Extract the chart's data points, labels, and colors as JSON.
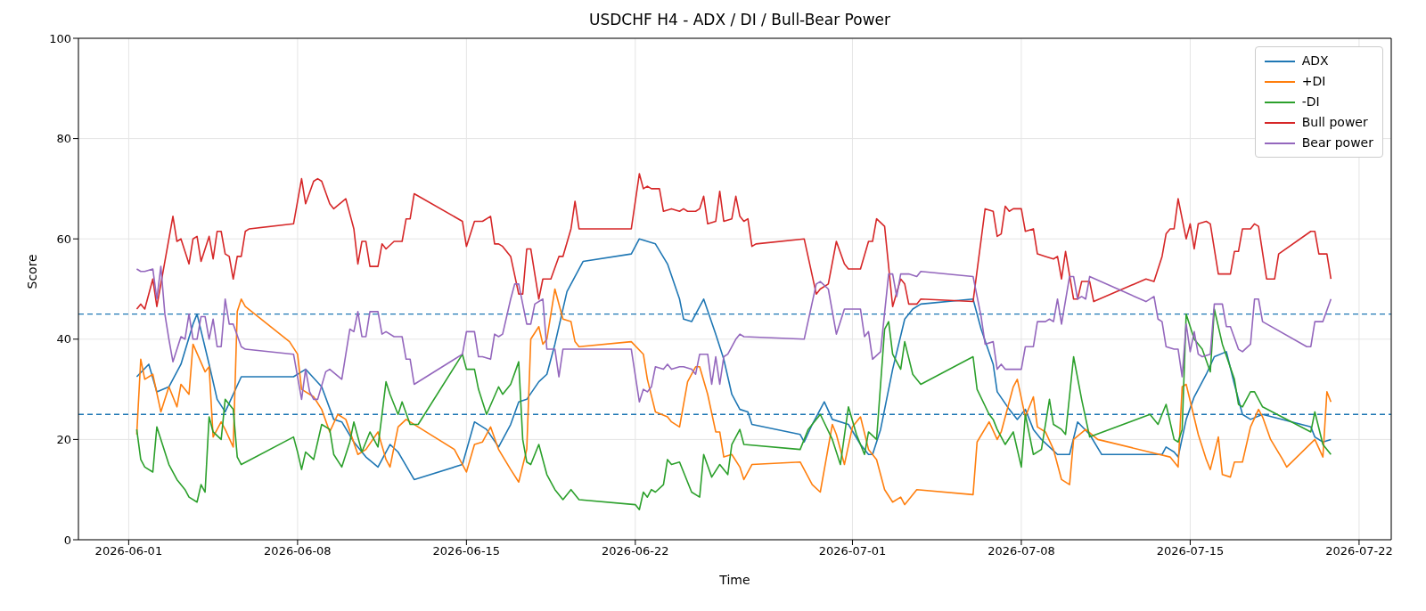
{
  "chart_data": {
    "type": "line",
    "title": "USDCHF H4 - ADX / DI / Bull-Bear Power",
    "xlabel": "Time",
    "ylabel": "Score",
    "xlim": [
      "2026-05-29T22:00",
      "2026-07-23T08:00"
    ],
    "xticks": [
      "2026-06-01",
      "2026-06-08",
      "2026-06-15",
      "2026-06-22",
      "2026-07-01",
      "2026-07-08",
      "2026-07-15",
      "2026-07-22"
    ],
    "ylim": [
      0,
      100
    ],
    "yticks": [
      0,
      20,
      40,
      60,
      80,
      100
    ],
    "grid": true,
    "legend": "top right",
    "marker": "none",
    "line_style": "solid",
    "ref_lines": [
      {
        "axis": "y",
        "value": 45,
        "color": "#1f77b4",
        "line_style": "dashed"
      },
      {
        "axis": "y",
        "value": 25,
        "color": "#1f77b4",
        "line_style": "dashed"
      }
    ],
    "series": [
      {
        "name": "ADX",
        "color": "#1f77b4",
        "x": [
          "2026-06-01T08:00",
          "2026-06-01T20:00",
          "2026-06-02T04:00",
          "2026-06-02T16:00",
          "2026-06-03T04:00",
          "2026-06-03T16:00",
          "2026-06-03T20:00",
          "2026-06-04T08:00",
          "2026-06-04T16:00",
          "2026-06-05T00:00",
          "2026-06-05T16:00",
          "2026-06-07T20:00",
          "2026-06-08T08:00",
          "2026-06-09T00:00",
          "2026-06-09T12:00",
          "2026-06-09T20:00",
          "2026-06-10T08:00",
          "2026-06-10T20:00",
          "2026-06-11T08:00",
          "2026-06-11T20:00",
          "2026-06-12T04:00",
          "2026-06-12T20:00",
          "2026-06-14T20:00",
          "2026-06-15T08:00",
          "2026-06-15T20:00",
          "2026-06-16T08:00",
          "2026-06-16T20:00",
          "2026-06-17T04:00",
          "2026-06-17T12:00",
          "2026-06-18T00:00",
          "2026-06-18T08:00",
          "2026-06-18T16:00",
          "2026-06-19T04:00",
          "2026-06-19T20:00",
          "2026-06-21T20:00",
          "2026-06-22T04:00",
          "2026-06-22T20:00",
          "2026-06-23T08:00",
          "2026-06-23T20:00",
          "2026-06-24T00:00",
          "2026-06-24T08:00",
          "2026-06-24T20:00",
          "2026-06-25T08:00",
          "2026-06-25T16:00",
          "2026-06-26T00:00",
          "2026-06-26T08:00",
          "2026-06-26T16:00",
          "2026-06-26T20:00",
          "2026-06-28T20:00",
          "2026-06-29T00:00",
          "2026-06-29T08:00",
          "2026-06-29T20:00",
          "2026-06-30T04:00",
          "2026-06-30T20:00",
          "2026-07-01T08:00",
          "2026-07-01T16:00",
          "2026-07-01T20:00",
          "2026-07-02T04:00",
          "2026-07-02T16:00",
          "2026-07-03T04:00",
          "2026-07-03T12:00",
          "2026-07-03T20:00",
          "2026-07-06T00:00",
          "2026-07-06T08:00",
          "2026-07-06T20:00",
          "2026-07-07T00:00",
          "2026-07-07T12:00",
          "2026-07-07T20:00",
          "2026-07-08T04:00",
          "2026-07-08T12:00",
          "2026-07-08T20:00",
          "2026-07-09T12:00",
          "2026-07-10T00:00",
          "2026-07-10T08:00",
          "2026-07-10T20:00",
          "2026-07-11T08:00",
          "2026-07-13T20:00",
          "2026-07-14T00:00",
          "2026-07-14T08:00",
          "2026-07-14T12:00",
          "2026-07-14T20:00",
          "2026-07-15T04:00",
          "2026-07-15T16:00",
          "2026-07-16T00:00",
          "2026-07-16T12:00",
          "2026-07-16T20:00",
          "2026-07-17T04:00",
          "2026-07-17T12:00",
          "2026-07-18T00:00",
          "2026-07-20T00:00",
          "2026-07-20T04:00",
          "2026-07-20T12:00",
          "2026-07-20T20:00"
        ],
        "values": [
          32.5,
          35,
          29.5,
          30.5,
          35,
          43,
          45,
          35,
          28,
          25.5,
          32.5,
          32.5,
          34,
          30.5,
          24,
          23.5,
          19.5,
          16.5,
          14.5,
          19,
          17.5,
          12,
          15,
          23.5,
          22,
          18.5,
          23,
          27.5,
          28,
          31.5,
          33,
          39,
          49.5,
          55.5,
          57,
          60,
          59,
          55,
          48,
          44,
          43.5,
          48,
          41,
          36,
          29,
          26,
          25.5,
          23,
          21,
          19.5,
          23,
          27.5,
          24,
          23,
          19,
          17,
          17,
          22,
          34,
          44,
          46,
          47,
          48,
          42,
          35,
          29.5,
          26,
          24,
          26,
          22,
          20,
          17,
          17,
          23.5,
          21,
          17,
          17,
          18.5,
          17.5,
          16.5,
          24,
          28.5,
          33,
          36.5,
          37.5,
          31,
          25,
          24,
          25,
          22.5,
          20.5,
          19.5,
          20
        ]
      },
      {
        "name": "+DI",
        "color": "#ff7f0e",
        "x": [
          "2026-06-01T08:00",
          "2026-06-01T12:00",
          "2026-06-01T16:00",
          "2026-06-02T00:00",
          "2026-06-02T08:00",
          "2026-06-02T16:00",
          "2026-06-03T00:00",
          "2026-06-03T04:00",
          "2026-06-03T12:00",
          "2026-06-03T16:00",
          "2026-06-04T04:00",
          "2026-06-04T08:00",
          "2026-06-04T12:00",
          "2026-06-04T20:00",
          "2026-06-05T00:00",
          "2026-06-05T08:00",
          "2026-06-05T12:00",
          "2026-06-05T16:00",
          "2026-06-05T20:00",
          "2026-06-07T16:00",
          "2026-06-08T00:00",
          "2026-06-08T04:00",
          "2026-06-08T16:00",
          "2026-06-09T00:00",
          "2026-06-09T08:00",
          "2026-06-09T16:00",
          "2026-06-10T00:00",
          "2026-06-10T12:00",
          "2026-06-10T20:00",
          "2026-06-11T08:00",
          "2026-06-11T16:00",
          "2026-06-11T20:00",
          "2026-06-12T04:00",
          "2026-06-12T12:00",
          "2026-06-13T00:00",
          "2026-06-14T12:00",
          "2026-06-15T00:00",
          "2026-06-15T08:00",
          "2026-06-15T16:00",
          "2026-06-16T00:00",
          "2026-06-16T08:00",
          "2026-06-16T20:00",
          "2026-06-17T04:00",
          "2026-06-17T12:00",
          "2026-06-17T16:00",
          "2026-06-18T00:00",
          "2026-06-18T04:00",
          "2026-06-18T08:00",
          "2026-06-18T16:00",
          "2026-06-19T00:00",
          "2026-06-19T08:00",
          "2026-06-19T12:00",
          "2026-06-19T16:00",
          "2026-06-21T20:00",
          "2026-06-22T08:00",
          "2026-06-22T12:00",
          "2026-06-22T20:00",
          "2026-06-23T08:00",
          "2026-06-23T12:00",
          "2026-06-23T20:00",
          "2026-06-24T04:00",
          "2026-06-24T12:00",
          "2026-06-24T16:00",
          "2026-06-25T00:00",
          "2026-06-25T08:00",
          "2026-06-25T12:00",
          "2026-06-25T16:00",
          "2026-06-26T00:00",
          "2026-06-26T08:00",
          "2026-06-26T12:00",
          "2026-06-26T20:00",
          "2026-06-28T20:00",
          "2026-06-29T08:00",
          "2026-06-29T16:00",
          "2026-06-30T04:00",
          "2026-06-30T08:00",
          "2026-06-30T16:00",
          "2026-07-01T00:00",
          "2026-07-01T08:00",
          "2026-07-01T16:00",
          "2026-07-02T00:00",
          "2026-07-02T08:00",
          "2026-07-02T16:00",
          "2026-07-03T00:00",
          "2026-07-03T04:00",
          "2026-07-03T16:00",
          "2026-07-06T00:00",
          "2026-07-06T04:00",
          "2026-07-06T16:00",
          "2026-07-07T00:00",
          "2026-07-07T04:00",
          "2026-07-07T16:00",
          "2026-07-07T20:00",
          "2026-07-08T04:00",
          "2026-07-08T12:00",
          "2026-07-08T16:00",
          "2026-07-09T00:00",
          "2026-07-09T08:00",
          "2026-07-09T16:00",
          "2026-07-10T00:00",
          "2026-07-10T04:00",
          "2026-07-10T16:00",
          "2026-07-11T04:00",
          "2026-07-14T04:00",
          "2026-07-14T12:00",
          "2026-07-14T16:00",
          "2026-07-14T20:00",
          "2026-07-15T08:00",
          "2026-07-15T16:00",
          "2026-07-15T20:00",
          "2026-07-16T04:00",
          "2026-07-16T08:00",
          "2026-07-16T16:00",
          "2026-07-16T20:00",
          "2026-07-17T04:00",
          "2026-07-17T12:00",
          "2026-07-17T20:00",
          "2026-07-18T00:00",
          "2026-07-18T08:00",
          "2026-07-18T20:00",
          "2026-07-19T00:00",
          "2026-07-20T04:00",
          "2026-07-20T12:00",
          "2026-07-20T16:00",
          "2026-07-20T20:00"
        ],
        "values": [
          21,
          36,
          32,
          33,
          25.5,
          30.5,
          26.5,
          31,
          29,
          39,
          33.5,
          34.5,
          20.5,
          23.5,
          22,
          18.5,
          45.5,
          48,
          46.5,
          39.5,
          37,
          30,
          28.5,
          26,
          21.5,
          25,
          24,
          17,
          18,
          21.5,
          16,
          14.5,
          22.5,
          24,
          22.5,
          18,
          13.5,
          19,
          19.5,
          22.5,
          18,
          14,
          11.5,
          18,
          40,
          42.5,
          39,
          40,
          50,
          44,
          43.5,
          39.5,
          38.5,
          39.5,
          37,
          32,
          25.5,
          24.5,
          23.5,
          22.5,
          31.5,
          34.5,
          34.5,
          29,
          21.5,
          21.5,
          16.5,
          17,
          14.5,
          12,
          15,
          15.5,
          11,
          9.5,
          23,
          21,
          15,
          22.5,
          24.5,
          18,
          16,
          10,
          7.5,
          8.5,
          7,
          10,
          9,
          19.5,
          23.5,
          20,
          21.5,
          30.5,
          32,
          24.5,
          28.5,
          22.5,
          21.5,
          18,
          12,
          11,
          20,
          22,
          20,
          16.5,
          14.5,
          30.5,
          31,
          21,
          16,
          14,
          20.5,
          13,
          12.5,
          15.5,
          15.5,
          22.5,
          26,
          24.5,
          20,
          16,
          14.5,
          20,
          16.5,
          29.5,
          27.5
        ]
      },
      {
        "name": "-DI",
        "color": "#2ca02c",
        "x": [
          "2026-06-01T08:00",
          "2026-06-01T12:00",
          "2026-06-01T16:00",
          "2026-06-02T00:00",
          "2026-06-02T04:00",
          "2026-06-02T16:00",
          "2026-06-03T00:00",
          "2026-06-03T08:00",
          "2026-06-03T12:00",
          "2026-06-03T20:00",
          "2026-06-04T00:00",
          "2026-06-04T04:00",
          "2026-06-04T08:00",
          "2026-06-04T12:00",
          "2026-06-04T20:00",
          "2026-06-05T00:00",
          "2026-06-05T08:00",
          "2026-06-05T12:00",
          "2026-06-05T16:00",
          "2026-06-07T20:00",
          "2026-06-08T00:00",
          "2026-06-08T04:00",
          "2026-06-08T08:00",
          "2026-06-08T16:00",
          "2026-06-09T00:00",
          "2026-06-09T08:00",
          "2026-06-09T12:00",
          "2026-06-09T20:00",
          "2026-06-10T04:00",
          "2026-06-10T08:00",
          "2026-06-10T16:00",
          "2026-06-11T00:00",
          "2026-06-11T08:00",
          "2026-06-11T16:00",
          "2026-06-11T20:00",
          "2026-06-12T04:00",
          "2026-06-12T08:00",
          "2026-06-12T16:00",
          "2026-06-13T00:00",
          "2026-06-14T20:00",
          "2026-06-15T00:00",
          "2026-06-15T08:00",
          "2026-06-15T12:00",
          "2026-06-15T20:00",
          "2026-06-16T08:00",
          "2026-06-16T12:00",
          "2026-06-16T20:00",
          "2026-06-17T04:00",
          "2026-06-17T08:00",
          "2026-06-17T12:00",
          "2026-06-17T16:00",
          "2026-06-18T00:00",
          "2026-06-18T04:00",
          "2026-06-18T08:00",
          "2026-06-18T16:00",
          "2026-06-19T00:00",
          "2026-06-19T08:00",
          "2026-06-19T16:00",
          "2026-06-22T00:00",
          "2026-06-22T04:00",
          "2026-06-22T08:00",
          "2026-06-22T12:00",
          "2026-06-22T16:00",
          "2026-06-22T20:00",
          "2026-06-23T04:00",
          "2026-06-23T08:00",
          "2026-06-23T12:00",
          "2026-06-23T20:00",
          "2026-06-24T08:00",
          "2026-06-24T16:00",
          "2026-06-24T20:00",
          "2026-06-25T04:00",
          "2026-06-25T12:00",
          "2026-06-25T20:00",
          "2026-06-26T00:00",
          "2026-06-26T08:00",
          "2026-06-26T12:00",
          "2026-06-28T20:00",
          "2026-06-29T04:00",
          "2026-06-29T08:00",
          "2026-06-29T16:00",
          "2026-06-30T04:00",
          "2026-06-30T12:00",
          "2026-06-30T20:00",
          "2026-07-01T04:00",
          "2026-07-01T12:00",
          "2026-07-01T16:00",
          "2026-07-02T00:00",
          "2026-07-02T08:00",
          "2026-07-02T12:00",
          "2026-07-02T16:00",
          "2026-07-03T00:00",
          "2026-07-03T04:00",
          "2026-07-03T12:00",
          "2026-07-03T20:00",
          "2026-07-06T00:00",
          "2026-07-06T04:00",
          "2026-07-06T16:00",
          "2026-07-06T20:00",
          "2026-07-07T00:00",
          "2026-07-07T08:00",
          "2026-07-07T16:00",
          "2026-07-08T00:00",
          "2026-07-08T04:00",
          "2026-07-08T12:00",
          "2026-07-08T20:00",
          "2026-07-09T04:00",
          "2026-07-09T08:00",
          "2026-07-09T16:00",
          "2026-07-09T20:00",
          "2026-07-10T04:00",
          "2026-07-10T12:00",
          "2026-07-10T20:00",
          "2026-07-13T08:00",
          "2026-07-13T16:00",
          "2026-07-14T00:00",
          "2026-07-14T08:00",
          "2026-07-14T12:00",
          "2026-07-14T16:00",
          "2026-07-14T20:00",
          "2026-07-15T04:00",
          "2026-07-15T12:00",
          "2026-07-15T20:00",
          "2026-07-16T00:00",
          "2026-07-16T08:00",
          "2026-07-16T20:00",
          "2026-07-17T00:00",
          "2026-07-17T04:00",
          "2026-07-17T12:00",
          "2026-07-17T16:00",
          "2026-07-18T00:00",
          "2026-07-20T00:00",
          "2026-07-20T04:00",
          "2026-07-20T12:00",
          "2026-07-20T20:00"
        ],
        "values": [
          22,
          16,
          14.5,
          13.5,
          22.5,
          15,
          12,
          10,
          8.5,
          7.5,
          11,
          9.5,
          24.5,
          21.5,
          20,
          28,
          26,
          16.5,
          15,
          20.5,
          17.5,
          14,
          17.5,
          16,
          23,
          22,
          17,
          14.5,
          19.5,
          23.5,
          17.5,
          21.5,
          18.5,
          31.5,
          29,
          25,
          27.5,
          23,
          23,
          37,
          34,
          34,
          30,
          25,
          30.5,
          29,
          31,
          35.5,
          20,
          15.5,
          15,
          19,
          16,
          13,
          10,
          8,
          10,
          8,
          7,
          6,
          9.5,
          8.5,
          10,
          9.5,
          11,
          16,
          15,
          15.5,
          9.5,
          8.5,
          17,
          12.5,
          15,
          13,
          19,
          22,
          19,
          18,
          22,
          23,
          25,
          20,
          15,
          26.5,
          21,
          17,
          21.5,
          20,
          42,
          43.5,
          37,
          34,
          39.5,
          33,
          31,
          36.5,
          30,
          25,
          24,
          22,
          19,
          21.5,
          14.5,
          25,
          17,
          18,
          28,
          23,
          22,
          21,
          36.5,
          28,
          20.5,
          25,
          23,
          27,
          20,
          19.5,
          22,
          45,
          40,
          38,
          33.5,
          46,
          39,
          32,
          27,
          26.5,
          29.5,
          29.5,
          26.5,
          21.5,
          25.5,
          19,
          17
        ]
      },
      {
        "name": "Bull power",
        "color": "#d62728",
        "x": [
          "2026-06-01T08:00",
          "2026-06-01T12:00",
          "2026-06-01T16:00",
          "2026-06-02T00:00",
          "2026-06-02T04:00",
          "2026-06-02T20:00",
          "2026-06-03T00:00",
          "2026-06-03T04:00",
          "2026-06-03T12:00",
          "2026-06-03T16:00",
          "2026-06-03T20:00",
          "2026-06-04T00:00",
          "2026-06-04T08:00",
          "2026-06-04T12:00",
          "2026-06-04T16:00",
          "2026-06-04T20:00",
          "2026-06-05T00:00",
          "2026-06-05T04:00",
          "2026-06-05T08:00",
          "2026-06-05T12:00",
          "2026-06-05T16:00",
          "2026-06-05T20:00",
          "2026-06-06T00:00",
          "2026-06-07T20:00",
          "2026-06-08T04:00",
          "2026-06-08T08:00",
          "2026-06-08T16:00",
          "2026-06-08T20:00",
          "2026-06-09T00:00",
          "2026-06-09T08:00",
          "2026-06-09T12:00",
          "2026-06-10T00:00",
          "2026-06-10T08:00",
          "2026-06-10T12:00",
          "2026-06-10T16:00",
          "2026-06-10T20:00",
          "2026-06-11T00:00",
          "2026-06-11T08:00",
          "2026-06-11T12:00",
          "2026-06-11T16:00",
          "2026-06-12T00:00",
          "2026-06-12T08:00",
          "2026-06-12T12:00",
          "2026-06-12T16:00",
          "2026-06-12T20:00",
          "2026-06-14T20:00",
          "2026-06-15T00:00",
          "2026-06-15T08:00",
          "2026-06-15T16:00",
          "2026-06-16T00:00",
          "2026-06-16T04:00",
          "2026-06-16T08:00",
          "2026-06-16T12:00",
          "2026-06-16T20:00",
          "2026-06-17T04:00",
          "2026-06-17T08:00",
          "2026-06-17T12:00",
          "2026-06-17T16:00",
          "2026-06-18T00:00",
          "2026-06-18T04:00",
          "2026-06-18T12:00",
          "2026-06-18T20:00",
          "2026-06-19T00:00",
          "2026-06-19T08:00",
          "2026-06-19T12:00",
          "2026-06-19T16:00",
          "2026-06-21T20:00",
          "2026-06-22T04:00",
          "2026-06-22T08:00",
          "2026-06-22T12:00",
          "2026-06-22T16:00",
          "2026-06-23T00:00",
          "2026-06-23T04:00",
          "2026-06-23T12:00",
          "2026-06-23T20:00",
          "2026-06-24T00:00",
          "2026-06-24T04:00",
          "2026-06-24T12:00",
          "2026-06-24T16:00",
          "2026-06-24T20:00",
          "2026-06-25T00:00",
          "2026-06-25T08:00",
          "2026-06-25T12:00",
          "2026-06-25T16:00",
          "2026-06-26T00:00",
          "2026-06-26T04:00",
          "2026-06-26T08:00",
          "2026-06-26T12:00",
          "2026-06-26T16:00",
          "2026-06-26T20:00",
          "2026-06-27T00:00",
          "2026-06-29T00:00",
          "2026-06-29T12:00",
          "2026-06-29T16:00",
          "2026-06-30T00:00",
          "2026-06-30T08:00",
          "2026-06-30T16:00",
          "2026-06-30T20:00",
          "2026-07-01T08:00",
          "2026-07-01T16:00",
          "2026-07-01T20:00",
          "2026-07-02T00:00",
          "2026-07-02T08:00",
          "2026-07-02T16:00",
          "2026-07-03T00:00",
          "2026-07-03T04:00",
          "2026-07-03T08:00",
          "2026-07-03T16:00",
          "2026-07-03T20:00",
          "2026-07-06T00:00",
          "2026-07-06T12:00",
          "2026-07-06T20:00",
          "2026-07-07T00:00",
          "2026-07-07T04:00",
          "2026-07-07T08:00",
          "2026-07-07T12:00",
          "2026-07-07T16:00",
          "2026-07-08T00:00",
          "2026-07-08T04:00",
          "2026-07-08T12:00",
          "2026-07-08T16:00",
          "2026-07-09T00:00",
          "2026-07-09T08:00",
          "2026-07-09T12:00",
          "2026-07-09T16:00",
          "2026-07-09T20:00",
          "2026-07-10T04:00",
          "2026-07-10T08:00",
          "2026-07-10T12:00",
          "2026-07-10T20:00",
          "2026-07-11T00:00",
          "2026-07-13T04:00",
          "2026-07-13T12:00",
          "2026-07-13T20:00",
          "2026-07-14T00:00",
          "2026-07-14T04:00",
          "2026-07-14T08:00",
          "2026-07-14T12:00",
          "2026-07-14T20:00",
          "2026-07-15T00:00",
          "2026-07-15T04:00",
          "2026-07-15T08:00",
          "2026-07-15T16:00",
          "2026-07-15T20:00",
          "2026-07-16T04:00",
          "2026-07-16T16:00",
          "2026-07-16T20:00",
          "2026-07-17T00:00",
          "2026-07-17T04:00",
          "2026-07-17T12:00",
          "2026-07-17T16:00",
          "2026-07-17T20:00",
          "2026-07-18T04:00",
          "2026-07-18T12:00",
          "2026-07-18T16:00",
          "2026-07-20T00:00",
          "2026-07-20T04:00",
          "2026-07-20T08:00",
          "2026-07-20T16:00",
          "2026-07-20T20:00"
        ],
        "values": [
          46,
          47,
          46,
          52,
          46.5,
          64.5,
          59.5,
          60,
          55,
          60,
          60.5,
          55.5,
          60.5,
          56,
          61.5,
          61.5,
          57,
          56.5,
          52,
          56.5,
          56.5,
          61.5,
          62,
          63,
          72,
          67,
          71.5,
          72,
          71.5,
          67,
          66,
          68,
          62,
          55,
          59.5,
          59.5,
          54.5,
          54.5,
          59,
          58,
          59.5,
          59.5,
          64,
          64,
          69,
          63.5,
          58.5,
          63.5,
          63.5,
          64.5,
          59,
          59,
          58.5,
          56.5,
          49,
          49,
          58,
          58,
          48,
          52,
          52,
          56.5,
          56.5,
          62,
          67.5,
          62,
          62,
          73,
          70,
          70.5,
          70,
          70,
          65.5,
          66,
          65.5,
          66,
          65.5,
          65.5,
          66,
          68.5,
          63,
          63.5,
          69.5,
          63.5,
          64,
          68.5,
          64.5,
          63.5,
          64,
          58.5,
          59,
          60,
          49,
          50,
          51,
          59.5,
          55,
          54,
          54,
          59.5,
          59.5,
          64,
          62.5,
          46.5,
          52,
          51,
          47,
          47,
          48,
          47.5,
          66,
          65.5,
          60.5,
          61,
          66.5,
          65.5,
          66,
          66,
          61.5,
          62,
          57,
          56.5,
          56,
          56.5,
          52,
          57.5,
          48,
          48,
          51.5,
          51.5,
          47.5,
          52,
          51.5,
          56.5,
          61,
          62,
          62,
          68,
          60,
          63,
          58,
          63,
          63.5,
          63,
          53,
          53,
          57.5,
          57.5,
          62,
          62,
          63,
          62.5,
          52,
          52,
          57,
          61.5,
          61.5,
          57,
          57,
          52
        ]
      },
      {
        "name": "Bear power",
        "color": "#9467bd",
        "x": [
          "2026-06-01T08:00",
          "2026-06-01T12:00",
          "2026-06-01T16:00",
          "2026-06-02T00:00",
          "2026-06-02T04:00",
          "2026-06-02T08:00",
          "2026-06-02T12:00",
          "2026-06-02T16:00",
          "2026-06-02T20:00",
          "2026-06-03T04:00",
          "2026-06-03T08:00",
          "2026-06-03T12:00",
          "2026-06-03T16:00",
          "2026-06-03T20:00",
          "2026-06-04T00:00",
          "2026-06-04T04:00",
          "2026-06-04T08:00",
          "2026-06-04T12:00",
          "2026-06-04T16:00",
          "2026-06-04T20:00",
          "2026-06-05T00:00",
          "2026-06-05T04:00",
          "2026-06-05T08:00",
          "2026-06-05T16:00",
          "2026-06-05T20:00",
          "2026-06-07T20:00",
          "2026-06-08T04:00",
          "2026-06-08T08:00",
          "2026-06-08T12:00",
          "2026-06-08T16:00",
          "2026-06-08T20:00",
          "2026-06-09T04:00",
          "2026-06-09T08:00",
          "2026-06-09T20:00",
          "2026-06-10T04:00",
          "2026-06-10T08:00",
          "2026-06-10T12:00",
          "2026-06-10T16:00",
          "2026-06-10T20:00",
          "2026-06-11T00:00",
          "2026-06-11T08:00",
          "2026-06-11T12:00",
          "2026-06-11T16:00",
          "2026-06-12T00:00",
          "2026-06-12T08:00",
          "2026-06-12T12:00",
          "2026-06-12T16:00",
          "2026-06-12T20:00",
          "2026-06-14T20:00",
          "2026-06-15T00:00",
          "2026-06-15T08:00",
          "2026-06-15T12:00",
          "2026-06-15T16:00",
          "2026-06-16T00:00",
          "2026-06-16T04:00",
          "2026-06-16T08:00",
          "2026-06-16T12:00",
          "2026-06-16T20:00",
          "2026-06-17T00:00",
          "2026-06-17T04:00",
          "2026-06-17T08:00",
          "2026-06-17T12:00",
          "2026-06-17T16:00",
          "2026-06-17T20:00",
          "2026-06-18T04:00",
          "2026-06-18T08:00",
          "2026-06-18T16:00",
          "2026-06-18T20:00",
          "2026-06-19T00:00",
          "2026-06-21T20:00",
          "2026-06-22T04:00",
          "2026-06-22T08:00",
          "2026-06-22T12:00",
          "2026-06-22T16:00",
          "2026-06-22T20:00",
          "2026-06-23T04:00",
          "2026-06-23T08:00",
          "2026-06-23T12:00",
          "2026-06-23T20:00",
          "2026-06-24T00:00",
          "2026-06-24T08:00",
          "2026-06-24T12:00",
          "2026-06-24T16:00",
          "2026-06-25T00:00",
          "2026-06-25T04:00",
          "2026-06-25T08:00",
          "2026-06-25T12:00",
          "2026-06-25T16:00",
          "2026-06-25T20:00",
          "2026-06-26T04:00",
          "2026-06-26T08:00",
          "2026-06-26T12:00",
          "2026-06-29T00:00",
          "2026-06-29T12:00",
          "2026-06-29T16:00",
          "2026-06-30T00:00",
          "2026-06-30T08:00",
          "2026-06-30T16:00",
          "2026-07-01T00:00",
          "2026-07-01T08:00",
          "2026-07-01T12:00",
          "2026-07-01T16:00",
          "2026-07-01T20:00",
          "2026-07-02T04:00",
          "2026-07-02T12:00",
          "2026-07-02T16:00",
          "2026-07-02T20:00",
          "2026-07-03T00:00",
          "2026-07-03T08:00",
          "2026-07-03T16:00",
          "2026-07-03T20:00",
          "2026-07-06T00:00",
          "2026-07-06T08:00",
          "2026-07-06T12:00",
          "2026-07-06T20:00",
          "2026-07-07T00:00",
          "2026-07-07T04:00",
          "2026-07-07T08:00",
          "2026-07-08T00:00",
          "2026-07-08T04:00",
          "2026-07-08T12:00",
          "2026-07-08T16:00",
          "2026-07-09T00:00",
          "2026-07-09T04:00",
          "2026-07-09T08:00",
          "2026-07-09T12:00",
          "2026-07-09T16:00",
          "2026-07-10T00:00",
          "2026-07-10T04:00",
          "2026-07-10T08:00",
          "2026-07-10T12:00",
          "2026-07-10T16:00",
          "2026-07-10T20:00",
          "2026-07-13T04:00",
          "2026-07-13T12:00",
          "2026-07-13T16:00",
          "2026-07-13T20:00",
          "2026-07-14T00:00",
          "2026-07-14T08:00",
          "2026-07-14T12:00",
          "2026-07-14T16:00",
          "2026-07-14T20:00",
          "2026-07-15T00:00",
          "2026-07-15T04:00",
          "2026-07-15T08:00",
          "2026-07-15T12:00",
          "2026-07-15T20:00",
          "2026-07-16T00:00",
          "2026-07-16T08:00",
          "2026-07-16T12:00",
          "2026-07-16T16:00",
          "2026-07-17T00:00",
          "2026-07-17T04:00",
          "2026-07-17T12:00",
          "2026-07-17T16:00",
          "2026-07-17T20:00",
          "2026-07-18T00:00",
          "2026-07-19T20:00",
          "2026-07-20T00:00",
          "2026-07-20T04:00",
          "2026-07-20T12:00",
          "2026-07-20T20:00"
        ],
        "values": [
          54,
          53.5,
          53.5,
          54,
          48,
          54.5,
          45,
          40,
          35.5,
          40.5,
          40,
          45,
          40,
          40,
          44.5,
          44.5,
          40,
          44,
          38.5,
          38.5,
          48,
          43,
          43,
          38.5,
          38,
          37,
          28,
          34,
          29.5,
          28,
          28,
          33.5,
          34,
          32,
          42,
          41.5,
          45.5,
          40.5,
          40.5,
          45.5,
          45.5,
          41,
          41.5,
          40.5,
          40.5,
          36,
          36,
          31,
          37,
          41.5,
          41.5,
          36.5,
          36.5,
          36,
          41,
          40.5,
          41,
          48,
          51,
          51,
          47,
          43,
          43,
          47,
          48,
          38,
          38,
          32.5,
          38,
          38,
          27.5,
          30,
          29.5,
          30.5,
          34.5,
          34,
          35,
          34,
          34.5,
          34.5,
          34,
          33,
          37,
          37,
          31,
          36.5,
          31,
          36.5,
          37,
          40,
          41,
          40.5,
          40,
          51,
          51.5,
          50,
          41,
          46,
          46,
          46,
          40.5,
          41.5,
          36,
          37.5,
          53,
          53,
          48.5,
          53,
          53,
          52.5,
          53.5,
          52.5,
          44.5,
          39,
          39.5,
          34,
          35,
          34,
          34,
          38.5,
          38.5,
          43.5,
          43.5,
          44,
          43.5,
          48,
          43,
          52.5,
          52.5,
          48,
          48.5,
          48,
          52.5,
          47.5,
          48.5,
          44,
          43.5,
          38.5,
          38,
          38,
          32.5,
          43,
          37.5,
          41.5,
          37,
          36.5,
          37,
          47,
          47,
          42.5,
          42.5,
          38,
          37.5,
          39,
          48,
          48,
          43.5,
          38.5,
          38.5,
          43.5,
          43.5,
          48
        ]
      }
    ]
  }
}
